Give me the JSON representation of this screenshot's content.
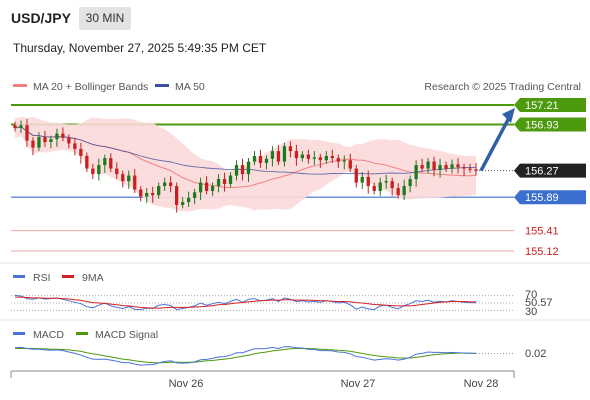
{
  "header": {
    "symbol": "USD/JPY",
    "timeframe": "30 MIN",
    "datetime": "Thursday, November 27, 2025 5:49:35 PM CET"
  },
  "legend": {
    "ma20_label": "MA 20 + Bollinger Bands",
    "ma50_label": "MA 50",
    "copyright": "Research © 2025 Trading Central"
  },
  "colors": {
    "resistance": "#4d9a0f",
    "support": "#3a6fd0",
    "ma20": "#f08080",
    "bb_fill": "#fbd9d9",
    "ma50": "#3b4fa0",
    "bull": "#1e7a1e",
    "bear": "#c62020",
    "rsi": "#4a74d6",
    "rsi_ma": "#d42020",
    "macd": "#4a74d6",
    "macd_signal": "#4d9a0f",
    "arrow": "#2f5fa6"
  },
  "levels": {
    "resistance_2": "157.21",
    "resistance_1": "156.93",
    "current": "156.27",
    "support_1": "155.89",
    "support_2": "155.41",
    "support_3": "155.12"
  },
  "rsi": {
    "label": "RSI",
    "ma_label": "9MA",
    "level_70": "70",
    "value": "50.57",
    "level_30": "30"
  },
  "macd": {
    "label": "MACD",
    "signal_label": "MACD Signal",
    "value": "0.02"
  },
  "xaxis": {
    "labels": [
      "Nov 26",
      "Nov 27",
      "Nov 28"
    ]
  },
  "chart_data": {
    "type": "candlestick",
    "y_unit": "USD/JPY",
    "ylim": [
      155.0,
      157.35
    ],
    "support_resistance": [
      157.21,
      156.93,
      155.89,
      155.41,
      155.12
    ],
    "current_price": 156.27,
    "series": [
      {
        "name": "MA 20 + Bollinger Bands",
        "style": "line with band"
      },
      {
        "name": "MA 50",
        "style": "line"
      }
    ],
    "close": [
      156.88,
      156.92,
      156.7,
      156.6,
      156.75,
      156.68,
      156.72,
      156.8,
      156.74,
      156.66,
      156.58,
      156.48,
      156.3,
      156.22,
      156.35,
      156.45,
      156.3,
      156.22,
      156.12,
      156.2,
      156.0,
      155.9,
      155.95,
      155.92,
      156.05,
      156.1,
      156.05,
      155.78,
      155.82,
      155.88,
      155.96,
      156.1,
      155.98,
      156.05,
      156.15,
      156.08,
      156.2,
      156.35,
      156.22,
      156.4,
      156.48,
      156.38,
      156.44,
      156.55,
      156.4,
      156.62,
      156.55,
      156.45,
      156.5,
      156.44,
      156.46,
      156.42,
      156.48,
      156.45,
      156.4,
      156.42,
      156.3,
      156.1,
      156.18,
      156.05,
      155.98,
      156.1,
      156.12,
      156.02,
      155.92,
      156.05,
      156.15,
      156.35,
      156.3,
      156.4,
      156.28,
      156.35,
      156.3,
      156.36,
      156.32,
      156.3,
      156.29,
      156.27
    ],
    "rsi": {
      "levels": [
        70,
        50,
        30
      ],
      "ylim": [
        20,
        80
      ],
      "value": 50.57,
      "rsi": [
        71,
        69,
        62,
        60,
        64,
        61,
        62,
        64,
        60,
        56,
        52,
        48,
        40,
        37,
        44,
        50,
        42,
        38,
        35,
        40,
        33,
        32,
        36,
        35,
        44,
        46,
        43,
        32,
        35,
        38,
        42,
        50,
        44,
        48,
        52,
        48,
        54,
        60,
        52,
        60,
        62,
        56,
        58,
        62,
        54,
        64,
        60,
        54,
        56,
        53,
        54,
        52,
        56,
        54,
        50,
        52,
        45,
        33,
        39,
        34,
        32,
        42,
        44,
        38,
        34,
        43,
        48,
        56,
        54,
        58,
        52,
        55,
        53,
        56,
        54,
        52,
        51,
        50.57
      ],
      "ma": [
        66,
        66,
        65,
        64,
        64,
        63,
        63,
        63,
        62,
        61,
        59,
        57,
        54,
        51,
        50,
        49,
        47,
        45,
        43,
        42,
        40,
        38,
        37,
        36,
        36,
        37,
        38,
        38,
        38,
        38,
        39,
        40,
        41,
        43,
        45,
        46,
        48,
        50,
        51,
        53,
        55,
        56,
        57,
        58,
        58,
        59,
        59,
        58,
        58,
        58,
        57,
        56,
        56,
        55,
        54,
        54,
        53,
        51,
        50,
        48,
        46,
        45,
        44,
        43,
        42,
        42,
        42,
        44,
        46,
        48,
        50,
        52,
        53,
        54,
        54,
        54,
        53,
        53
      ]
    },
    "macd": {
      "ylim": [
        -0.45,
        0.4
      ],
      "value": 0.02,
      "macd": [
        0.18,
        0.19,
        0.16,
        0.14,
        0.14,
        0.12,
        0.11,
        0.12,
        0.1,
        0.06,
        0.02,
        -0.03,
        -0.09,
        -0.14,
        -0.15,
        -0.14,
        -0.17,
        -0.2,
        -0.24,
        -0.24,
        -0.28,
        -0.31,
        -0.3,
        -0.3,
        -0.25,
        -0.21,
        -0.19,
        -0.25,
        -0.26,
        -0.25,
        -0.22,
        -0.16,
        -0.15,
        -0.12,
        -0.08,
        -0.07,
        -0.03,
        0.04,
        0.04,
        0.1,
        0.15,
        0.15,
        0.16,
        0.19,
        0.16,
        0.21,
        0.21,
        0.18,
        0.17,
        0.14,
        0.13,
        0.1,
        0.1,
        0.09,
        0.06,
        0.05,
        0.01,
        -0.07,
        -0.09,
        -0.13,
        -0.17,
        -0.15,
        -0.13,
        -0.14,
        -0.17,
        -0.14,
        -0.09,
        0.0,
        0.02,
        0.06,
        0.05,
        0.05,
        0.04,
        0.05,
        0.04,
        0.03,
        0.02,
        0.02
      ],
      "signal": [
        0.16,
        0.16,
        0.16,
        0.16,
        0.15,
        0.15,
        0.14,
        0.14,
        0.13,
        0.12,
        0.1,
        0.08,
        0.04,
        0.01,
        -0.02,
        -0.05,
        -0.08,
        -0.11,
        -0.14,
        -0.16,
        -0.19,
        -0.21,
        -0.23,
        -0.24,
        -0.25,
        -0.24,
        -0.23,
        -0.23,
        -0.23,
        -0.23,
        -0.23,
        -0.21,
        -0.19,
        -0.18,
        -0.16,
        -0.14,
        -0.12,
        -0.09,
        -0.06,
        -0.03,
        0.01,
        0.04,
        0.06,
        0.09,
        0.11,
        0.13,
        0.15,
        0.16,
        0.16,
        0.16,
        0.15,
        0.14,
        0.13,
        0.12,
        0.11,
        0.1,
        0.08,
        0.05,
        0.02,
        -0.01,
        -0.04,
        -0.06,
        -0.08,
        -0.09,
        -0.11,
        -0.11,
        -0.11,
        -0.09,
        -0.07,
        -0.04,
        -0.02,
        0.0,
        0.01,
        0.02,
        0.03,
        0.03,
        0.03,
        0.02
      ]
    },
    "projection": {
      "from": 156.27,
      "to": 157.21
    }
  }
}
